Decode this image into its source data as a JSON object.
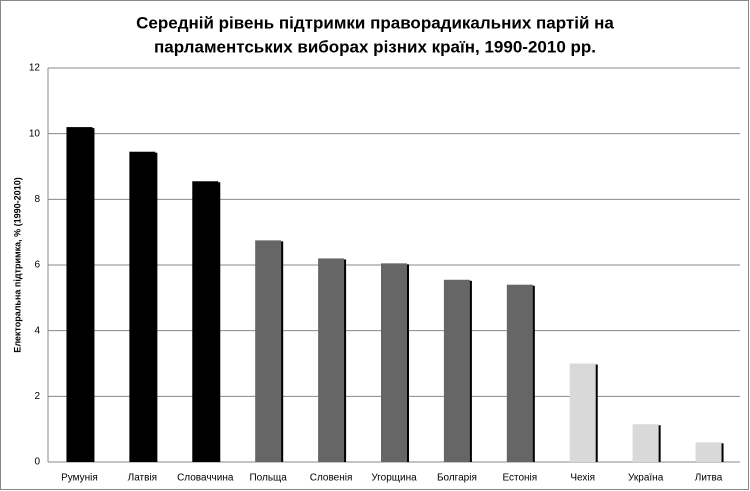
{
  "chart_data": {
    "type": "bar",
    "title": [
      "Середній рівень підтримки праворадикальних партій на",
      "парламентських виборах різних країн, 1990-2010 рр."
    ],
    "y_label": "Електоральна підтримка, % (1990-2010)",
    "categories": [
      "Румунія",
      "Латвія",
      "Словаччина",
      "Польща",
      "Словенія",
      "Угорщина",
      "Болгарія",
      "Естонія",
      "Чехія",
      "Україна",
      "Литва"
    ],
    "values": [
      10.2,
      9.45,
      8.55,
      6.75,
      6.2,
      6.05,
      5.55,
      5.4,
      3.0,
      1.15,
      0.6
    ],
    "colors": [
      "#000000",
      "#000000",
      "#000000",
      "#666666",
      "#666666",
      "#666666",
      "#666666",
      "#666666",
      "#d9d9d9",
      "#d9d9d9",
      "#d9d9d9"
    ],
    "ylim": [
      0,
      12
    ],
    "yticks": [
      0,
      2,
      4,
      6,
      8,
      10,
      12
    ],
    "grid": true
  }
}
